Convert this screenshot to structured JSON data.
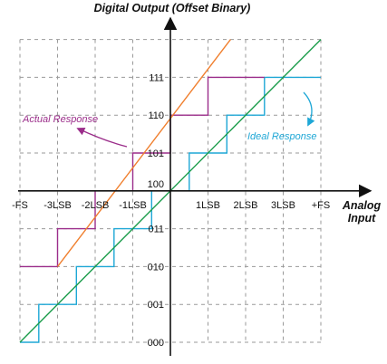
{
  "chart_data": {
    "type": "line",
    "title": "Digital Output (Offset Binary)",
    "xlabel": "Analog Input",
    "ylabel": "",
    "x_ticks": [
      {
        "value": -4,
        "label": "-FS"
      },
      {
        "value": -3,
        "label": "-3LSB"
      },
      {
        "value": -2,
        "label": "-2LSB"
      },
      {
        "value": -1,
        "label": "-1LSB"
      },
      {
        "value": 1,
        "label": "1LSB"
      },
      {
        "value": 2,
        "label": "2LSB"
      },
      {
        "value": 3,
        "label": "3LSB"
      },
      {
        "value": 4,
        "label": "+FS"
      }
    ],
    "y_codes": [
      {
        "value": 0,
        "label": "000"
      },
      {
        "value": 1,
        "label": "001"
      },
      {
        "value": 2,
        "label": "010"
      },
      {
        "value": 3,
        "label": "011"
      },
      {
        "value": 4,
        "label": "100"
      },
      {
        "value": 5,
        "label": "101"
      },
      {
        "value": 6,
        "label": "110"
      },
      {
        "value": 7,
        "label": "111"
      }
    ],
    "xlim": [
      -4,
      4.4
    ],
    "ylim": [
      0,
      8
    ],
    "grid": true,
    "series": [
      {
        "name": "Ideal Response",
        "color": "#1ea7d6",
        "style": "step",
        "points": [
          [
            -4,
            0
          ],
          [
            -3.5,
            0
          ],
          [
            -3.5,
            1
          ],
          [
            -2.5,
            1
          ],
          [
            -2.5,
            2
          ],
          [
            -1.5,
            2
          ],
          [
            -1.5,
            3
          ],
          [
            -0.5,
            3
          ],
          [
            -0.5,
            4
          ],
          [
            0.5,
            4
          ],
          [
            0.5,
            5
          ],
          [
            1.5,
            5
          ],
          [
            1.5,
            6
          ],
          [
            2.5,
            6
          ],
          [
            2.5,
            7
          ],
          [
            4,
            7
          ]
        ]
      },
      {
        "name": "Actual Response",
        "color": "#9b2d8a",
        "style": "step",
        "points": [
          [
            -4,
            2
          ],
          [
            -3,
            2
          ],
          [
            -3,
            3
          ],
          [
            -2,
            3
          ],
          [
            -2,
            4
          ],
          [
            -1,
            4
          ],
          [
            -1,
            5
          ],
          [
            0,
            5
          ],
          [
            0,
            6
          ],
          [
            1,
            6
          ],
          [
            1,
            7
          ],
          [
            2.5,
            7
          ]
        ]
      },
      {
        "name": "",
        "color": "#1a9c4a",
        "style": "line",
        "points": [
          [
            -4,
            0
          ],
          [
            4,
            8
          ]
        ]
      },
      {
        "name": "",
        "color": "#f07f2e",
        "style": "line",
        "points": [
          [
            -3,
            2
          ],
          [
            1.6,
            8
          ]
        ]
      }
    ],
    "annotations": [
      {
        "text": "Actual Response",
        "color": "#9b2d8a"
      },
      {
        "text": "Ideal Response",
        "color": "#1ea7d6"
      }
    ]
  }
}
